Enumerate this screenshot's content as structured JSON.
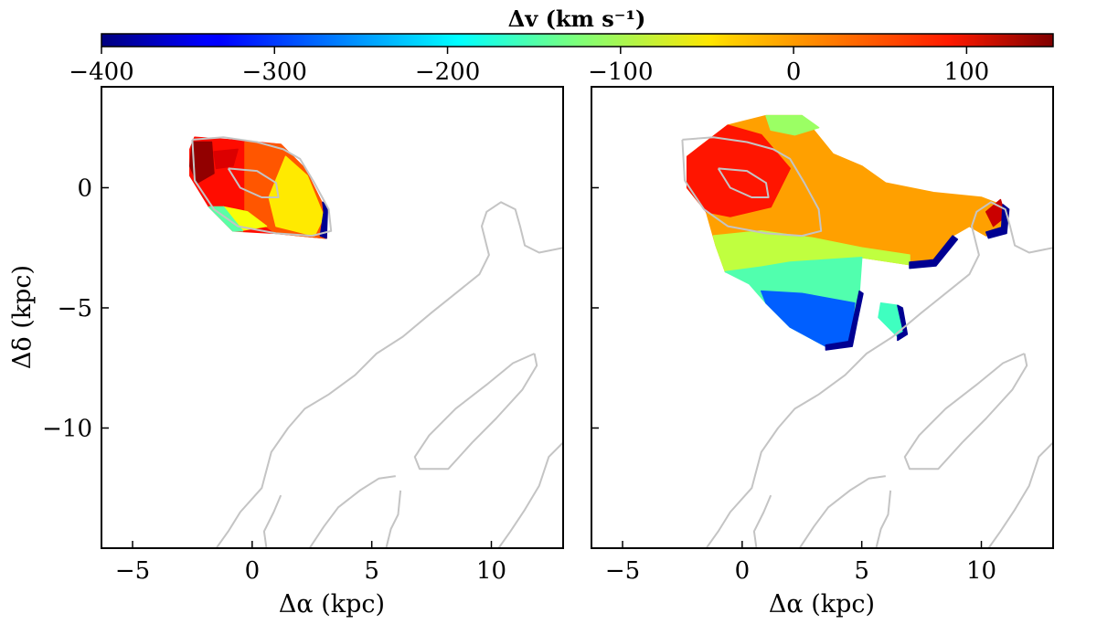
{
  "chart_data": {
    "type": "heatmap",
    "colorbar": {
      "label": "Δv (km s⁻¹)",
      "range": [
        -400,
        150
      ],
      "colormap": "jet",
      "ticks": [
        -400,
        -300,
        -200,
        -100,
        0,
        100
      ],
      "tick_labels": [
        "−400",
        "−300",
        "−200",
        "−100",
        "0",
        "100"
      ]
    },
    "panels": [
      {
        "name": "left",
        "xlabel": "Δα (kpc)",
        "ylabel": "Δδ (kpc)",
        "xlim": [
          -6.3,
          13
        ],
        "ylim": [
          -15,
          4.2
        ],
        "xticks": [
          -5,
          0,
          5,
          10
        ],
        "xtick_labels": [
          "−5",
          "0",
          "5",
          "10"
        ],
        "yticks": [
          0,
          -5,
          -10
        ],
        "ytick_labels": [
          "0",
          "−5",
          "−10"
        ],
        "regions": [
          {
            "v": 75,
            "poly": [
              [
                -2.4,
                2.1
              ],
              [
                -1,
                2.0
              ],
              [
                1.2,
                1.8
              ],
              [
                2.2,
                0.8
              ],
              [
                3.1,
                -1.0
              ],
              [
                3.1,
                -2.1
              ],
              [
                1,
                -1.9
              ],
              [
                -0.8,
                -1.8
              ],
              [
                -1.8,
                -0.8
              ],
              [
                -2.6,
                0.5
              ],
              [
                -2.6,
                1.6
              ]
            ]
          },
          {
            "v": 35,
            "poly": [
              [
                -0.3,
                1.9
              ],
              [
                1.2,
                1.8
              ],
              [
                2.2,
                0.8
              ],
              [
                3.1,
                -1.0
              ],
              [
                3.1,
                -2.1
              ],
              [
                1,
                -1.9
              ],
              [
                -0.3,
                -1.0
              ]
            ]
          },
          {
            "v": -45,
            "poly": [
              [
                1.4,
                1.3
              ],
              [
                2.3,
                0.5
              ],
              [
                3.0,
                -1.2
              ],
              [
                2.6,
                -2.0
              ],
              [
                1.0,
                -1.6
              ],
              [
                0.7,
                -0.4
              ]
            ]
          },
          {
            "v": -60,
            "poly": [
              [
                -1.2,
                -0.8
              ],
              [
                -0.2,
                -1.0
              ],
              [
                0.6,
                -1.6
              ],
              [
                -0.6,
                -1.8
              ]
            ]
          },
          {
            "v": -145,
            "poly": [
              [
                -1.8,
                -0.8
              ],
              [
                -1.2,
                -0.8
              ],
              [
                -0.4,
                -1.8
              ],
              [
                -0.8,
                -1.8
              ]
            ]
          },
          {
            "v": 140,
            "poly": [
              [
                -2.5,
                1.9
              ],
              [
                -1.7,
                1.9
              ],
              [
                -1.6,
                0.6
              ],
              [
                -2.3,
                0.2
              ],
              [
                -2.6,
                0.9
              ]
            ]
          },
          {
            "v": 100,
            "poly": [
              [
                -1.6,
                1.5
              ],
              [
                -0.6,
                1.6
              ],
              [
                -0.8,
                0.9
              ],
              [
                -1.5,
                0.8
              ]
            ]
          },
          {
            "v": -390,
            "poly": [
              [
                2.95,
                -0.6
              ],
              [
                3.15,
                -0.8
              ],
              [
                3.1,
                -2.1
              ],
              [
                2.85,
                -2.0
              ],
              [
                3.0,
                -1.0
              ]
            ]
          }
        ]
      },
      {
        "name": "right",
        "xlabel": "Δα (kpc)",
        "xlim": [
          -6.3,
          13
        ],
        "ylim": [
          -15,
          4.2
        ],
        "xticks": [
          -5,
          0,
          5,
          10
        ],
        "xtick_labels": [
          "−5",
          "0",
          "5",
          "10"
        ],
        "regions": [
          {
            "v": -5,
            "poly": [
              [
                -2.3,
                1.3
              ],
              [
                -0.6,
                2.6
              ],
              [
                1,
                3.0
              ],
              [
                2.5,
                3.0
              ],
              [
                3.8,
                1.4
              ],
              [
                5,
                0.9
              ],
              [
                6,
                0.2
              ],
              [
                8,
                -0.2
              ],
              [
                10,
                -0.4
              ],
              [
                10.8,
                -0.7
              ],
              [
                11.0,
                -1.7
              ],
              [
                10.2,
                -2.0
              ],
              [
                9.5,
                -1.6
              ],
              [
                8.8,
                -2.0
              ],
              [
                8,
                -3.0
              ],
              [
                7.0,
                -3.2
              ],
              [
                5.0,
                -2.9
              ],
              [
                3.5,
                -3.0
              ],
              [
                2,
                -3.1
              ],
              [
                0.8,
                -3.3
              ],
              [
                -0.7,
                -3.5
              ],
              [
                -1.1,
                -2.4
              ],
              [
                -1.5,
                -1.0
              ],
              [
                -2.3,
                0.0
              ]
            ]
          },
          {
            "v": 70,
            "poly": [
              [
                -2.3,
                1.3
              ],
              [
                -0.6,
                2.6
              ],
              [
                0.8,
                2.2
              ],
              [
                2.0,
                0.8
              ],
              [
                1.2,
                -0.8
              ],
              [
                -0.5,
                -1.2
              ],
              [
                -1.5,
                -1.0
              ],
              [
                -2.3,
                0.0
              ]
            ]
          },
          {
            "v": -90,
            "poly": [
              [
                -1.2,
                -2.0
              ],
              [
                0.8,
                -1.8
              ],
              [
                3,
                -2.1
              ],
              [
                5,
                -2.5
              ],
              [
                7,
                -2.8
              ],
              [
                7,
                -3.2
              ],
              [
                5,
                -2.9
              ],
              [
                3.5,
                -3.0
              ],
              [
                2,
                -3.1
              ],
              [
                0.8,
                -3.3
              ],
              [
                -0.7,
                -3.5
              ],
              [
                -1.1,
                -2.4
              ]
            ]
          },
          {
            "v": -110,
            "poly": [
              [
                1,
                3.0
              ],
              [
                2.5,
                3.0
              ],
              [
                3.2,
                2.5
              ],
              [
                2.2,
                2.2
              ],
              [
                1.2,
                2.4
              ]
            ]
          },
          {
            "v": -150,
            "poly": [
              [
                -0.7,
                -3.5
              ],
              [
                0.8,
                -3.3
              ],
              [
                2,
                -3.1
              ],
              [
                3.5,
                -3.0
              ],
              [
                5.0,
                -2.9
              ],
              [
                4.9,
                -4.3
              ],
              [
                4.7,
                -5.5
              ],
              [
                4.5,
                -6.5
              ],
              [
                3.5,
                -6.6
              ],
              [
                2,
                -5.8
              ],
              [
                1,
                -4.8
              ],
              [
                0.3,
                -4.0
              ]
            ]
          },
          {
            "v": -280,
            "poly": [
              [
                0.8,
                -4.3
              ],
              [
                2.5,
                -4.4
              ],
              [
                4.7,
                -4.8
              ],
              [
                4.5,
                -6.5
              ],
              [
                3.5,
                -6.6
              ],
              [
                2,
                -5.8
              ],
              [
                1,
                -4.8
              ]
            ]
          },
          {
            "v": -160,
            "poly": [
              [
                5.8,
                -4.8
              ],
              [
                6.5,
                -4.9
              ],
              [
                6.8,
                -6.0
              ],
              [
                6.5,
                -6.2
              ],
              [
                5.7,
                -5.4
              ]
            ]
          },
          {
            "v": 110,
            "poly": [
              [
                10.2,
                -1.0
              ],
              [
                10.8,
                -0.5
              ],
              [
                11.0,
                -1.2
              ],
              [
                10.5,
                -1.6
              ]
            ]
          },
          {
            "v": -390,
            "poly": [
              [
                10.9,
                -0.7
              ],
              [
                11.15,
                -0.9
              ],
              [
                11.05,
                -1.9
              ],
              [
                10.3,
                -2.1
              ],
              [
                10.2,
                -1.85
              ],
              [
                10.85,
                -1.65
              ]
            ]
          },
          {
            "v": -390,
            "poly": [
              [
                8.8,
                -2.0
              ],
              [
                8.0,
                -3.0
              ],
              [
                7.0,
                -3.1
              ],
              [
                7.0,
                -3.35
              ],
              [
                8.1,
                -3.25
              ],
              [
                9.0,
                -2.15
              ]
            ]
          },
          {
            "v": -390,
            "poly": [
              [
                4.9,
                -4.3
              ],
              [
                5.05,
                -4.4
              ],
              [
                4.8,
                -5.6
              ],
              [
                4.6,
                -6.6
              ],
              [
                3.5,
                -6.75
              ],
              [
                3.5,
                -6.55
              ],
              [
                4.45,
                -6.4
              ],
              [
                4.65,
                -5.5
              ]
            ]
          },
          {
            "v": -390,
            "poly": [
              [
                6.5,
                -4.9
              ],
              [
                6.7,
                -5.0
              ],
              [
                6.9,
                -6.1
              ],
              [
                6.5,
                -6.35
              ],
              [
                6.5,
                -6.15
              ],
              [
                6.75,
                -6.0
              ]
            ]
          }
        ]
      }
    ],
    "contours": [
      [
        [
          -2.5,
          2.0
        ],
        [
          -1.2,
          2.1
        ],
        [
          0.2,
          1.9
        ],
        [
          1.3,
          1.6
        ],
        [
          2.0,
          1.2
        ],
        [
          2.6,
          0.2
        ],
        [
          3.2,
          -0.9
        ],
        [
          3.3,
          -1.8
        ],
        [
          2.5,
          -2.0
        ],
        [
          1.0,
          -1.9
        ],
        [
          -0.6,
          -1.6
        ],
        [
          -1.6,
          -0.9
        ],
        [
          -2.4,
          0.3
        ],
        [
          -2.5,
          2.0
        ]
      ],
      [
        [
          -1.0,
          0.8
        ],
        [
          0.2,
          0.7
        ],
        [
          1.0,
          0.2
        ],
        [
          1.1,
          -0.4
        ],
        [
          0.4,
          -0.4
        ],
        [
          -0.5,
          0.0
        ],
        [
          -1.0,
          0.8
        ]
      ],
      [
        [
          13.0,
          -2.5
        ],
        [
          12,
          -2.7
        ],
        [
          11.4,
          -2.4
        ],
        [
          11.2,
          -1.6
        ],
        [
          11.0,
          -0.9
        ],
        [
          10.4,
          -0.6
        ],
        [
          9.8,
          -1.0
        ],
        [
          9.6,
          -1.6
        ],
        [
          9.9,
          -2.8
        ],
        [
          9.5,
          -3.6
        ],
        [
          8.5,
          -4.4
        ],
        [
          7.5,
          -5.2
        ],
        [
          6.3,
          -6.2
        ],
        [
          5.2,
          -6.9
        ],
        [
          4.3,
          -7.8
        ],
        [
          3.2,
          -8.6
        ],
        [
          2.2,
          -9.2
        ],
        [
          1.5,
          -10.0
        ],
        [
          0.8,
          -11.0
        ],
        [
          0.4,
          -12.5
        ],
        [
          -0.5,
          -13.5
        ],
        [
          -1,
          -14.3
        ],
        [
          -1.5,
          -15.0
        ]
      ],
      [
        [
          11.8,
          -6.9
        ],
        [
          10.9,
          -7.3
        ],
        [
          9.8,
          -8.2
        ],
        [
          8.5,
          -9.2
        ],
        [
          7.4,
          -10.3
        ],
        [
          6.8,
          -11.2
        ],
        [
          7.0,
          -11.7
        ],
        [
          8.2,
          -11.7
        ],
        [
          9.2,
          -10.6
        ],
        [
          10.2,
          -9.6
        ],
        [
          11.3,
          -8.4
        ],
        [
          11.9,
          -7.4
        ],
        [
          11.8,
          -6.9
        ]
      ],
      [
        [
          6.0,
          -12.0
        ],
        [
          5.3,
          -12.1
        ],
        [
          4.5,
          -12.6
        ],
        [
          3.6,
          -13.3
        ],
        [
          3.0,
          -14.1
        ],
        [
          2.4,
          -15.0
        ]
      ],
      [
        [
          13.0,
          -10.6
        ],
        [
          12.4,
          -11.2
        ],
        [
          12.0,
          -12.4
        ],
        [
          11.4,
          -13.4
        ],
        [
          10.8,
          -14.3
        ],
        [
          10.3,
          -15.0
        ]
      ],
      [
        [
          6.2,
          -12.6
        ],
        [
          6.1,
          -13.6
        ],
        [
          5.8,
          -14.2
        ],
        [
          5.6,
          -15.0
        ]
      ],
      [
        [
          0.6,
          -15.0
        ],
        [
          0.5,
          -14.3
        ],
        [
          0.9,
          -13.5
        ],
        [
          1.2,
          -12.8
        ]
      ]
    ]
  }
}
